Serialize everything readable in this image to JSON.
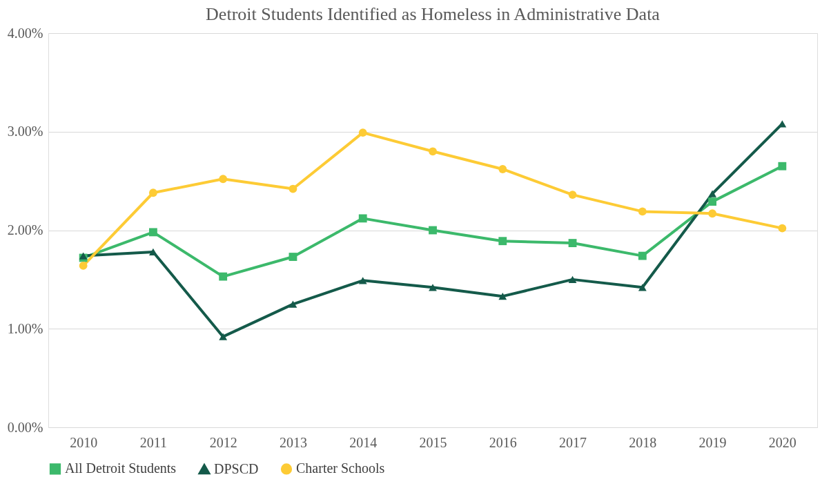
{
  "chart_data": {
    "type": "line",
    "title": "Detroit Students Identified as Homeless in Administrative Data",
    "categories": [
      "2010",
      "2011",
      "2012",
      "2013",
      "2014",
      "2015",
      "2016",
      "2017",
      "2018",
      "2019",
      "2020"
    ],
    "series": [
      {
        "name": "All Detroit Students",
        "color": "#3cb96b",
        "marker": "square",
        "values": [
          1.72,
          1.98,
          1.53,
          1.73,
          2.12,
          2.0,
          1.89,
          1.87,
          1.74,
          2.29,
          2.65
        ]
      },
      {
        "name": "DPSCD",
        "color": "#145a4a",
        "marker": "triangle",
        "values": [
          1.74,
          1.78,
          0.92,
          1.25,
          1.49,
          1.42,
          1.33,
          1.5,
          1.42,
          2.37,
          3.08
        ]
      },
      {
        "name": "Charter Schools",
        "color": "#fdcb35",
        "marker": "circle",
        "values": [
          1.64,
          2.38,
          2.52,
          2.42,
          2.99,
          2.8,
          2.62,
          2.36,
          2.19,
          2.17,
          2.02
        ]
      }
    ],
    "ylim": [
      0,
      4
    ],
    "yticks": [
      {
        "value": 0,
        "label": "0.00%"
      },
      {
        "value": 1,
        "label": "1.00%"
      },
      {
        "value": 2,
        "label": "2.00%"
      },
      {
        "value": 3,
        "label": "3.00%"
      },
      {
        "value": 4,
        "label": "4.00%"
      }
    ],
    "grid": "y",
    "legend": "bottom",
    "line_style": "solid"
  }
}
